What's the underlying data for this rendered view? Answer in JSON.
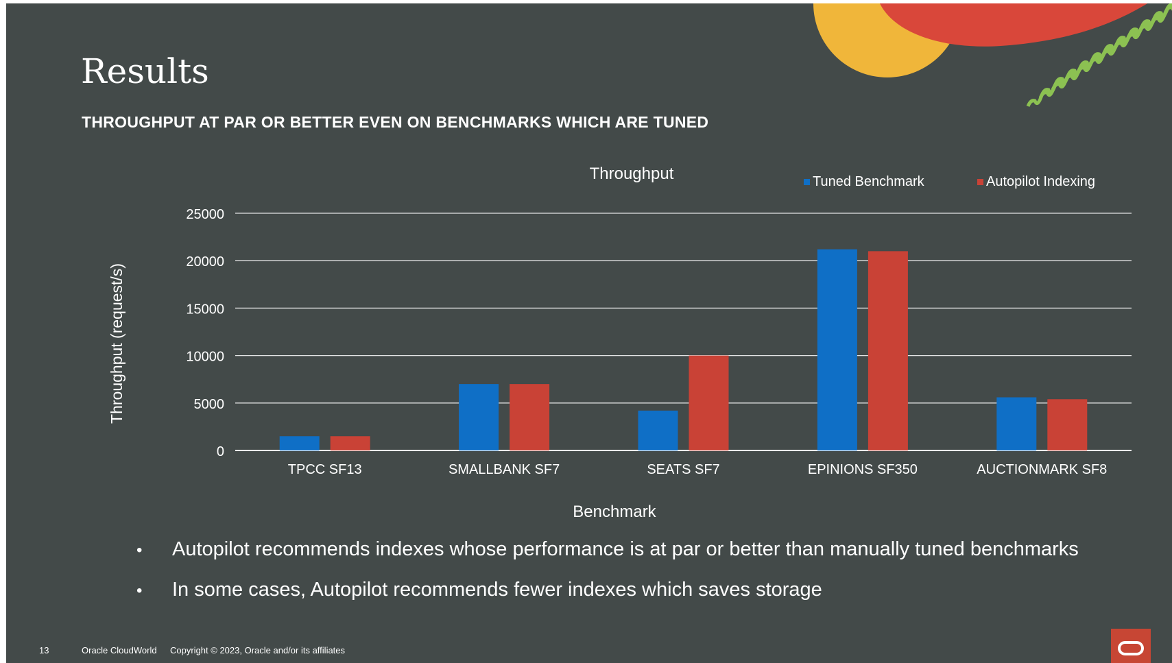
{
  "slide": {
    "title": "Results",
    "subtitle": "THROUGHPUT AT PAR OR BETTER EVEN ON BENCHMARKS WHICH ARE TUNED",
    "bullets": [
      "Autopilot recommends indexes whose performance is at par or better than manually tuned benchmarks",
      "In some cases, Autopilot recommends fewer indexes which saves storage"
    ],
    "bullet_glyph": "•",
    "footer": {
      "page_number": "13",
      "event": "Oracle CloudWorld",
      "copyright": "Copyright © 2023, Oracle and/or its affiliates"
    },
    "logo_icon": "oracle-logo-icon",
    "colors": {
      "background": "#434a49",
      "accent_red": "#c74634",
      "deco_yellow": "#f0b63a",
      "deco_red": "#d9473a",
      "deco_green": "#8cc152"
    }
  },
  "chart_data": {
    "type": "bar",
    "title": "Throughput",
    "xlabel": "Benchmark",
    "ylabel": "Throughput (request/s)",
    "categories": [
      "TPCC SF13",
      "SMALLBANK SF7",
      "SEATS SF7",
      "EPINIONS SF350",
      "AUCTIONMARK SF8"
    ],
    "series": [
      {
        "name": "Tuned Benchmark",
        "color": "#0f6fc6",
        "values": [
          1500,
          7000,
          4200,
          21200,
          5600
        ]
      },
      {
        "name": "Autopilot Indexing",
        "color": "#c94236",
        "values": [
          1500,
          7000,
          10000,
          21000,
          5400
        ]
      }
    ],
    "ylim": [
      0,
      25000
    ],
    "yticks": [
      0,
      5000,
      10000,
      15000,
      20000,
      25000
    ],
    "grid": true,
    "legend": "top-right"
  }
}
